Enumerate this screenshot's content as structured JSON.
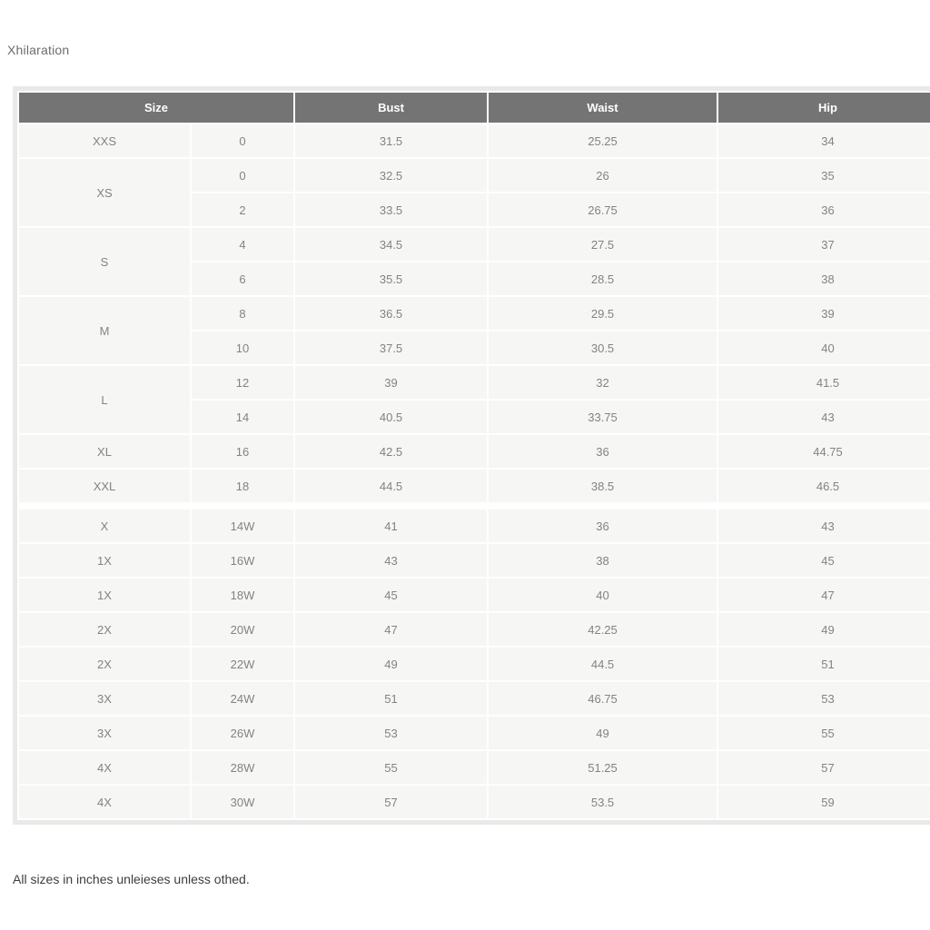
{
  "page": {
    "brand_title": "Xhilaration",
    "footnote": "All sizes in inches unleieses unless othed."
  },
  "colors": {
    "header_bg": "#747474",
    "header_text": "#ffffff",
    "cell_bg": "#f6f6f5",
    "cell_text": "#838383",
    "grid_line": "#ffffff",
    "table_outer_border": "#eae9e7",
    "page_bg": "#ffffff"
  },
  "size_chart": {
    "columns": [
      {
        "label": "Size",
        "colspan": 2
      },
      {
        "label": "Bust",
        "colspan": 1
      },
      {
        "label": "Waist",
        "colspan": 1
      },
      {
        "label": "Hip",
        "colspan": 1
      }
    ],
    "sections": [
      {
        "name": "standard-sizes",
        "rows": [
          {
            "size": "XXS",
            "rowspan": 1,
            "num": "0",
            "bust": "31.5",
            "waist": "25.25",
            "hip": "34"
          },
          {
            "size": "XS",
            "rowspan": 2,
            "num": "0",
            "bust": "32.5",
            "waist": "26",
            "hip": "35"
          },
          {
            "size": null,
            "num": "2",
            "bust": "33.5",
            "waist": "26.75",
            "hip": "36"
          },
          {
            "size": "S",
            "rowspan": 2,
            "num": "4",
            "bust": "34.5",
            "waist": "27.5",
            "hip": "37"
          },
          {
            "size": null,
            "num": "6",
            "bust": "35.5",
            "waist": "28.5",
            "hip": "38"
          },
          {
            "size": "M",
            "rowspan": 2,
            "num": "8",
            "bust": "36.5",
            "waist": "29.5",
            "hip": "39"
          },
          {
            "size": null,
            "num": "10",
            "bust": "37.5",
            "waist": "30.5",
            "hip": "40"
          },
          {
            "size": "L",
            "rowspan": 2,
            "num": "12",
            "bust": "39",
            "waist": "32",
            "hip": "41.5"
          },
          {
            "size": null,
            "num": "14",
            "bust": "40.5",
            "waist": "33.75",
            "hip": "43"
          },
          {
            "size": "XL",
            "rowspan": 1,
            "num": "16",
            "bust": "42.5",
            "waist": "36",
            "hip": "44.75"
          },
          {
            "size": "XXL",
            "rowspan": 1,
            "num": "18",
            "bust": "44.5",
            "waist": "38.5",
            "hip": "46.5"
          }
        ]
      },
      {
        "name": "plus-sizes",
        "rows": [
          {
            "size": "X",
            "rowspan": 1,
            "num": "14W",
            "bust": "41",
            "waist": "36",
            "hip": "43"
          },
          {
            "size": "1X",
            "rowspan": 1,
            "num": "16W",
            "bust": "43",
            "waist": "38",
            "hip": "45"
          },
          {
            "size": "1X",
            "rowspan": 1,
            "num": "18W",
            "bust": "45",
            "waist": "40",
            "hip": "47"
          },
          {
            "size": "2X",
            "rowspan": 1,
            "num": "20W",
            "bust": "47",
            "waist": "42.25",
            "hip": "49"
          },
          {
            "size": "2X",
            "rowspan": 1,
            "num": "22W",
            "bust": "49",
            "waist": "44.5",
            "hip": "51"
          },
          {
            "size": "3X",
            "rowspan": 1,
            "num": "24W",
            "bust": "51",
            "waist": "46.75",
            "hip": "53"
          },
          {
            "size": "3X",
            "rowspan": 1,
            "num": "26W",
            "bust": "53",
            "waist": "49",
            "hip": "55"
          },
          {
            "size": "4X",
            "rowspan": 1,
            "num": "28W",
            "bust": "55",
            "waist": "51.25",
            "hip": "57"
          },
          {
            "size": "4X",
            "rowspan": 1,
            "num": "30W",
            "bust": "57",
            "waist": "53.5",
            "hip": "59"
          }
        ]
      }
    ]
  }
}
